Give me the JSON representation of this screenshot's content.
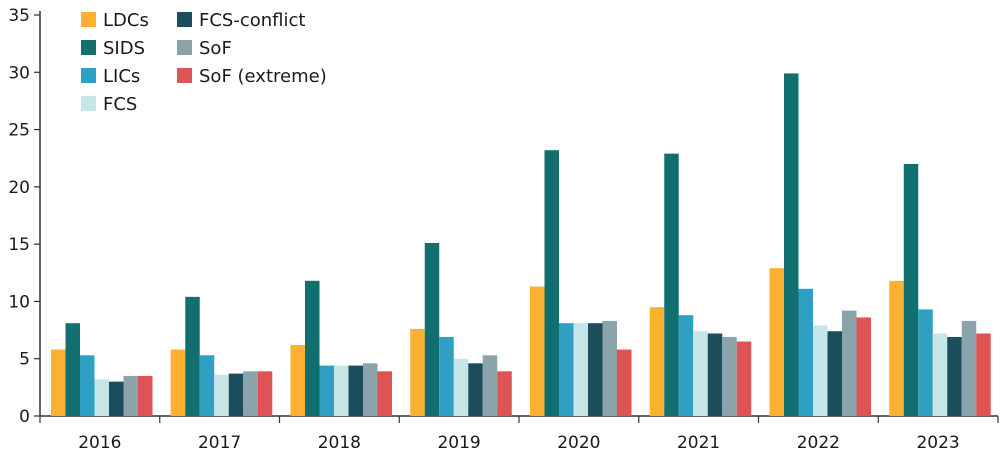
{
  "chart_data": {
    "type": "bar",
    "categories": [
      "2016",
      "2017",
      "2018",
      "2019",
      "2020",
      "2021",
      "2022",
      "2023"
    ],
    "series": [
      {
        "name": "LDCs",
        "color": "#FBB12F",
        "values": [
          5.8,
          5.8,
          6.2,
          7.6,
          11.3,
          9.5,
          12.9,
          11.8
        ]
      },
      {
        "name": "SIDS",
        "color": "#126F70",
        "values": [
          8.1,
          10.4,
          11.8,
          15.1,
          23.2,
          22.9,
          29.9,
          22.0
        ]
      },
      {
        "name": "LICs",
        "color": "#2FA0C1",
        "values": [
          5.3,
          5.3,
          4.4,
          6.9,
          8.1,
          8.8,
          11.1,
          9.3
        ]
      },
      {
        "name": "FCS",
        "color": "#C6E5E6",
        "values": [
          3.2,
          3.6,
          4.4,
          5.0,
          8.1,
          7.4,
          7.9,
          7.2
        ]
      },
      {
        "name": "FCS-conflict",
        "color": "#1C4D5C",
        "values": [
          3.0,
          3.7,
          4.4,
          4.6,
          8.1,
          7.2,
          7.4,
          6.9
        ]
      },
      {
        "name": "SoF",
        "color": "#8BA4AB",
        "values": [
          3.5,
          3.9,
          4.6,
          5.3,
          8.3,
          6.9,
          9.2,
          8.3
        ]
      },
      {
        "name": "SoF (extreme)",
        "color": "#DE5455",
        "values": [
          3.5,
          3.9,
          3.9,
          3.9,
          5.8,
          6.5,
          8.6,
          7.2
        ]
      }
    ],
    "yticks": [
      "0",
      "5",
      "10",
      "15",
      "20",
      "25",
      "30",
      "35"
    ],
    "ylim": [
      0,
      35
    ],
    "xlabel": "",
    "ylabel": "",
    "grid": false,
    "legend_position": "top-left",
    "legend_layout": "two columns"
  }
}
